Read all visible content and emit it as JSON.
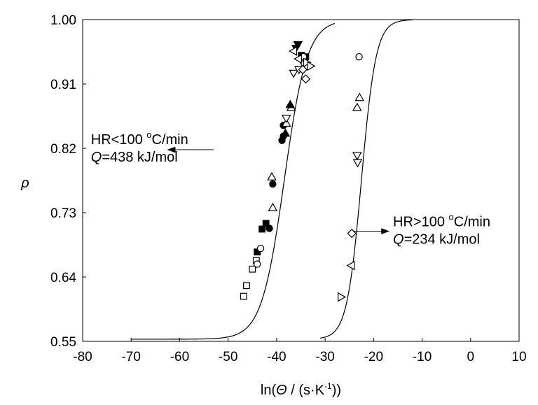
{
  "chart_data": {
    "type": "scatter",
    "xlabel": "ln(Θ / (s·K⁻¹))",
    "xlabel_parts": [
      "ln(",
      "Θ",
      " / (s·K",
      "-1",
      "))"
    ],
    "ylabel": "ρ",
    "xlim": [
      -80,
      10
    ],
    "ylim": [
      0.55,
      1.0
    ],
    "x_ticks": [
      -80,
      -70,
      -60,
      -50,
      -40,
      -30,
      -20,
      -10,
      0,
      10
    ],
    "x_tick_labels": [
      "-80",
      "-70",
      "-60",
      "-50",
      "-40",
      "-30",
      "-20",
      "-10",
      "0",
      "10"
    ],
    "y_ticks": [
      0.55,
      0.64,
      0.73,
      0.82,
      0.91,
      1.0
    ],
    "y_tick_labels": [
      "0.55",
      "0.64",
      "0.73",
      "0.82",
      "0.91",
      "1.00"
    ],
    "grid": false,
    "legend": "none",
    "annotations": [
      {
        "line1_parts": [
          "HR<100 ",
          "o",
          "C/min"
        ],
        "line2_parts": [
          "Q",
          "=438 kJ/mol"
        ],
        "arrow_tail": [
          -53,
          0.818
        ],
        "arrow_head": [
          -62.5,
          0.818
        ],
        "text_at": [
          -78.3,
          0.826
        ],
        "text_anchor": "start"
      },
      {
        "line1_parts": [
          "HR>100 ",
          "o",
          "C/min"
        ],
        "line2_parts": [
          "Q",
          "=234 kJ/mol"
        ],
        "arrow_tail": [
          -24.2,
          0.704
        ],
        "arrow_head": [
          -16.8,
          0.704
        ],
        "text_at": [
          -16.0,
          0.711
        ],
        "text_anchor": "start"
      }
    ],
    "curves": [
      {
        "center": -38.4,
        "scale": 2.35,
        "ymin": 0.553,
        "ymax": 1.0,
        "x_start": -70,
        "x_end": -28,
        "points": [
          [
            -70,
            0.553
          ],
          [
            -60,
            0.553
          ],
          [
            -55,
            0.5535
          ],
          [
            -51,
            0.557
          ],
          [
            -48,
            0.567
          ],
          [
            -46,
            0.59
          ],
          [
            -44,
            0.625
          ],
          [
            -42,
            0.68
          ],
          [
            -40,
            0.74
          ],
          [
            -38.4,
            0.777
          ],
          [
            -37,
            0.83
          ],
          [
            -35,
            0.9
          ],
          [
            -33,
            0.95
          ],
          [
            -31,
            0.985
          ],
          [
            -30,
            0.995
          ],
          [
            -28,
            1.0
          ]
        ]
      },
      {
        "center": -22.5,
        "scale": 1.5,
        "ymin": 0.553,
        "ymax": 1.0,
        "x_start": -31,
        "x_end": -12,
        "points": [
          [
            -31,
            0.553
          ],
          [
            -29,
            0.56
          ],
          [
            -27,
            0.58
          ],
          [
            -25.5,
            0.62
          ],
          [
            -24.5,
            0.66
          ],
          [
            -23.5,
            0.71
          ],
          [
            -22.5,
            0.777
          ],
          [
            -21.5,
            0.84
          ],
          [
            -20.5,
            0.9
          ],
          [
            -19.5,
            0.95
          ],
          [
            -18.5,
            0.98
          ],
          [
            -17,
            0.995
          ],
          [
            -15,
            1.0
          ],
          [
            -12,
            1.0
          ]
        ]
      }
    ],
    "series": [
      {
        "marker": "square-open",
        "points": [
          [
            -46.8,
            0.613
          ],
          [
            -46.2,
            0.628
          ],
          [
            -45.0,
            0.651
          ],
          [
            -44.2,
            0.663
          ]
        ]
      },
      {
        "marker": "square-filled",
        "points": [
          [
            -44.0,
            0.675
          ],
          [
            -43.0,
            0.707
          ],
          [
            -42.2,
            0.715
          ],
          [
            -34.9,
            0.95
          ],
          [
            -34.0,
            0.948
          ]
        ]
      },
      {
        "marker": "circle-open",
        "points": [
          [
            -44.0,
            0.658
          ],
          [
            -43.3,
            0.68
          ],
          [
            -34.5,
            0.948
          ],
          [
            -23.0,
            0.948
          ]
        ]
      },
      {
        "marker": "circle-filled",
        "points": [
          [
            -41.5,
            0.708
          ],
          [
            -40.8,
            0.77
          ],
          [
            -38.9,
            0.831
          ],
          [
            -38.6,
            0.837
          ],
          [
            -38.6,
            0.852
          ]
        ]
      },
      {
        "marker": "triangle-up-open",
        "points": [
          [
            -41.0,
            0.78
          ],
          [
            -40.8,
            0.737
          ],
          [
            -38.0,
            0.855
          ],
          [
            -37.0,
            0.877
          ],
          [
            -23.4,
            0.877
          ],
          [
            -22.9,
            0.891
          ]
        ]
      },
      {
        "marker": "triangle-up-filled",
        "points": [
          [
            -38.2,
            0.841
          ],
          [
            -37.2,
            0.881
          ]
        ]
      },
      {
        "marker": "triangle-down-open",
        "points": [
          [
            -38.0,
            0.862
          ],
          [
            -36.5,
            0.925
          ],
          [
            -35.4,
            0.93
          ],
          [
            -34.5,
            0.938
          ],
          [
            -23.4,
            0.81
          ],
          [
            -23.3,
            0.8
          ]
        ]
      },
      {
        "marker": "triangle-down-filled",
        "points": [
          [
            -36.0,
            0.96
          ],
          [
            -35.6,
            0.965
          ]
        ]
      },
      {
        "marker": "triangle-left-open",
        "points": [
          [
            -36.5,
            0.956
          ],
          [
            -35.5,
            0.945
          ],
          [
            -24.6,
            0.656
          ]
        ]
      },
      {
        "marker": "triangle-right-open",
        "points": [
          [
            -33.8,
            0.94
          ],
          [
            -33.0,
            0.935
          ],
          [
            -26.7,
            0.612
          ]
        ]
      },
      {
        "marker": "diamond-open",
        "points": [
          [
            -34.6,
            0.93
          ],
          [
            -34.0,
            0.917
          ],
          [
            -24.5,
            0.701
          ]
        ]
      }
    ]
  }
}
